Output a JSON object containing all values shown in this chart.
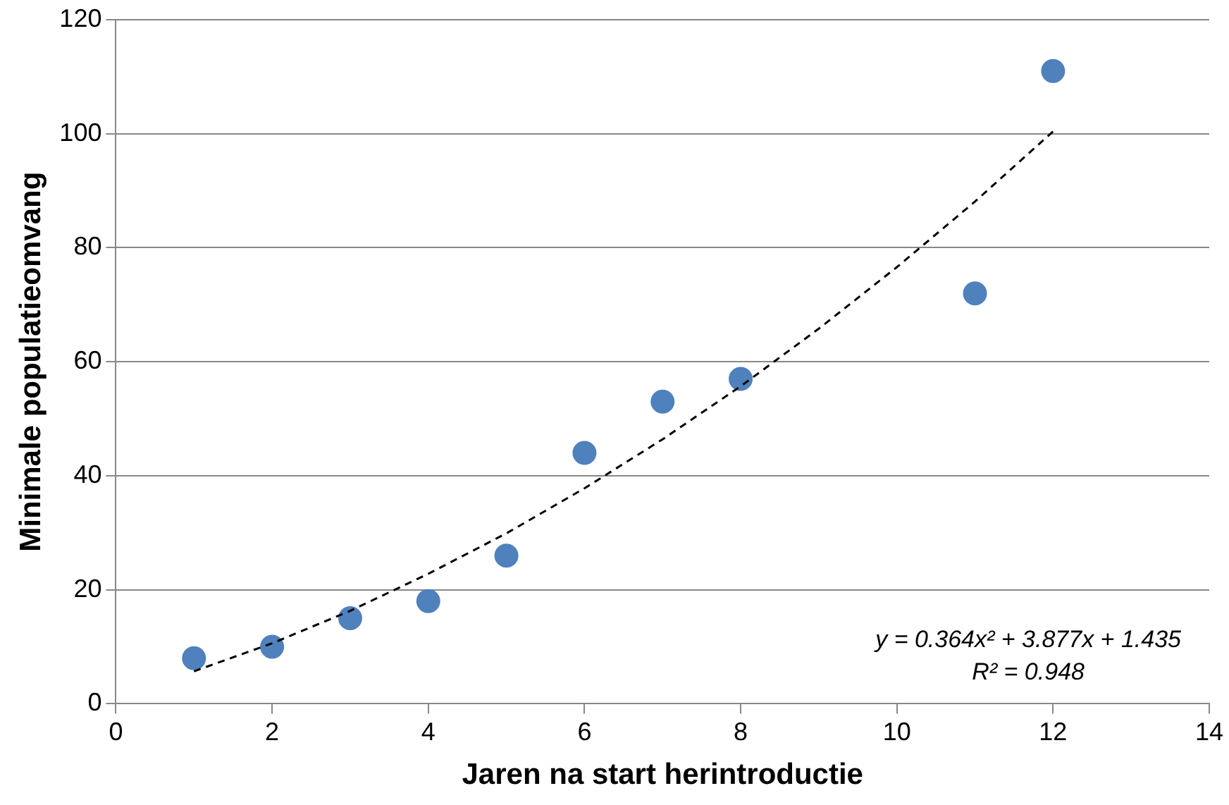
{
  "chart_data": {
    "type": "scatter",
    "xlabel": "Jaren na start herintroductie",
    "ylabel": "Minimale populatieomvang",
    "xlim": [
      0,
      14
    ],
    "xticks": [
      0,
      2,
      4,
      6,
      8,
      10,
      12,
      14
    ],
    "ylim": [
      0,
      120
    ],
    "yticks": [
      0,
      20,
      40,
      60,
      80,
      100,
      120
    ],
    "grid": "y",
    "marker": "circle",
    "series": [
      {
        "type": "scatter",
        "color": "#4f81bd",
        "x": [
          1,
          2,
          3,
          4,
          5,
          6,
          7,
          8,
          11,
          12
        ],
        "values": [
          8,
          10,
          15,
          18,
          26,
          44,
          53,
          57,
          72,
          111
        ]
      },
      {
        "type": "line",
        "color": "#000000",
        "line_style": "dashed",
        "marker": "none",
        "x": [
          1,
          2,
          3,
          4,
          5,
          6,
          7,
          8,
          9,
          10,
          11,
          12
        ],
        "values": [
          5.7,
          10.6,
          16.3,
          22.8,
          29.9,
          37.8,
          46.4,
          55.7,
          65.8,
          76.6,
          88.1,
          100.4
        ]
      }
    ],
    "annotations": [
      "y = 0.364x² + 3.877x + 1.435",
      "R² = 0.948"
    ]
  }
}
